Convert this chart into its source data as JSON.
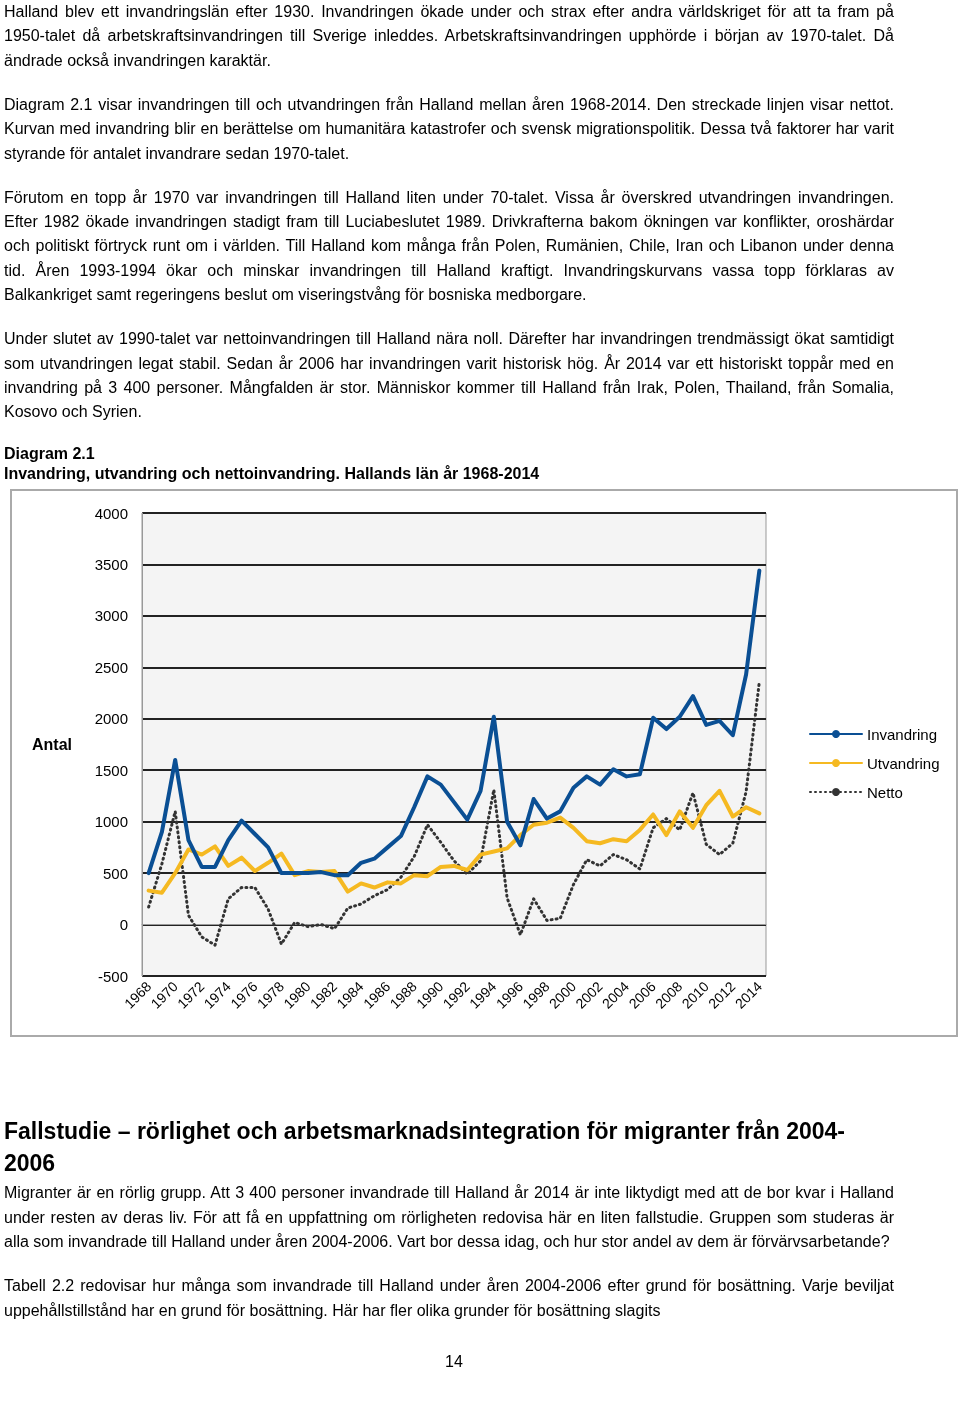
{
  "chart_data": {
    "type": "line",
    "title": "Diagram 2.1",
    "subtitle": "Invandring, utvandring och nettoinvandring. Hallands län år 1968-2014",
    "ylabel": "Antal",
    "annotations": [
      "Halland blev ett invandringslän efter 1930. Invandringen ökade under och strax efter andra världskriget för att ta fram på 1950-talet då arbetskraftsinvandringen till Sverige inleddes. Arbetskraftsinvandringen upphörde i början av 1970-talet. Då ändrade också invandringen karaktär.",
      "Diagram 2.1 visar invandringen till och utvandringen från Halland mellan åren 1968-2014. Den streckade linjen visar nettot. Kurvan med invandring blir en berättelse om humanitära katastrofer och svensk migrationspolitik. Dessa två faktorer har varit styrande för antalet invandrare sedan 1970-talet.",
      "Förutom en topp år 1970 var invandringen till Halland liten under 70-talet. Vissa år överskred utvandringen invandringen. Efter 1982 ökade invandringen stadigt fram till Luciabeslutet 1989. Drivkrafterna bakom ökningen var konflikter, oroshärdar och politiskt förtryck runt om i världen. Till Halland kom många från Polen, Rumänien, Chile, Iran och Libanon under denna tid. Åren 1993-1994 ökar och minskar invandringen till Halland kraftigt. Invandringskurvans vassa topp förklaras av Balkankriget samt regeringens beslut om viseringstvång för bosniska medborgare.",
      "Under slutet av 1990-talet var nettoinvandringen till Halland nära noll. Därefter har invandringen trendmässigt ökat samtidigt som utvandringen legat stabil. Sedan år 2006 har invandringen varit historisk hög. År 2014 var ett historiskt toppår med en invandring på 3 400 personer. Mångfalden är stor. Människor kommer till Halland från Irak, Polen, Thailand, från Somalia, Kosovo och Syrien.",
      "Fallstudie – rörlighet och arbetsmarknadsintegration för migranter från 2004-2006",
      "Migranter är en rörlig grupp. Att 3 400 personer invandrade till Halland år 2014 är inte liktydigt med att de bor kvar i Halland under resten av deras liv. För att få en uppfattning om rörligheten redovisa här en liten fallstudie. Gruppen som studeras är alla som invandrade till Halland under åren 2004-2006. Vart bor dessa idag, och hur stor andel av dem är förvärvsarbetande?",
      "Tabell 2.2 redovisar hur många som invandrade till Halland under åren 2004-2006 efter grund för bosättning. Varje beviljat uppehållstillstånd har en grund för bosättning. Här har fler olika grunder för bosättning slagits",
      "14"
    ],
    "categories": [
      "1968",
      null,
      "1970",
      null,
      "1972",
      null,
      "1974",
      null,
      "1976",
      null,
      "1978",
      null,
      "1980",
      null,
      "1982",
      null,
      "1984",
      null,
      "1986",
      null,
      "1988",
      null,
      "1990",
      null,
      "1992",
      null,
      "1994",
      null,
      "1996",
      null,
      "1998",
      null,
      "2000",
      null,
      "2002",
      null,
      "2004",
      null,
      "2006",
      null,
      "2008",
      null,
      "2010",
      null,
      "2012",
      null,
      "2014"
    ],
    "series": [
      {
        "name": "Invandring",
        "color": "#0a4f94",
        "line_style": "solid",
        "values": [
          500,
          900,
          1600,
          820,
          560,
          560,
          820,
          1010,
          880,
          750,
          500,
          500,
          500,
          510,
          480,
          480,
          600,
          640,
          750,
          860,
          1140,
          1440,
          1360,
          1190,
          1020,
          1300,
          2020,
          1000,
          770,
          1220,
          1030,
          1100,
          1330,
          1440,
          1360,
          1510,
          1440,
          1460,
          2010,
          1900,
          2020,
          2220,
          1940,
          1980,
          1840,
          2430,
          3440
        ]
      },
      {
        "name": "Utvandring",
        "color": "#f5b921",
        "line_style": "solid",
        "values": [
          330,
          310,
          500,
          730,
          680,
          760,
          570,
          650,
          520,
          600,
          690,
          480,
          520,
          510,
          520,
          320,
          400,
          360,
          410,
          400,
          480,
          470,
          560,
          570,
          530,
          680,
          710,
          740,
          870,
          970,
          990,
          1040,
          940,
          810,
          790,
          830,
          810,
          920,
          1070,
          870,
          1100,
          940,
          1160,
          1300,
          1050,
          1140,
          1080
        ]
      },
      {
        "name": "Netto",
        "color": "#333333",
        "line_style": "dotted",
        "values": [
          170,
          590,
          1100,
          90,
          -120,
          -200,
          250,
          360,
          360,
          150,
          -190,
          20,
          -20,
          0,
          -40,
          160,
          200,
          280,
          340,
          460,
          660,
          970,
          800,
          620,
          490,
          620,
          1310,
          260,
          -100,
          250,
          40,
          60,
          390,
          630,
          570,
          680,
          630,
          540,
          940,
          1030,
          920,
          1280,
          780,
          680,
          790,
          1290,
          2360
        ]
      }
    ],
    "ylim": [
      -500,
      4000
    ],
    "yticks": [
      -500,
      0,
      500,
      1000,
      1500,
      2000,
      2500,
      3000,
      3500,
      4000
    ],
    "grid": "y",
    "legend": "right",
    "marker": "none"
  }
}
